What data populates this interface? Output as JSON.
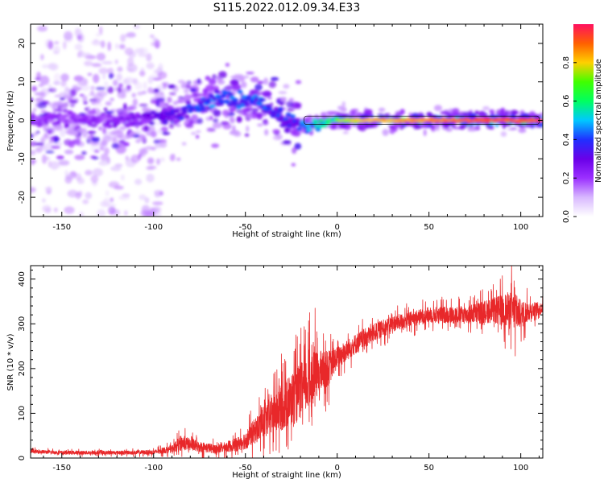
{
  "figure": {
    "title": "S115.2022.012.09.34.E33"
  },
  "chart_data": [
    {
      "type": "heatmap",
      "xlabel": "Height of straight line (km)",
      "ylabel": "Frequency (Hz)",
      "xlim": [
        -167,
        112
      ],
      "ylim": [
        -25,
        25
      ],
      "xticks": [
        -150,
        -100,
        -50,
        0,
        50,
        100
      ],
      "yticks": [
        -20,
        -10,
        0,
        10,
        20
      ],
      "colorbar": {
        "label": "Normalized spectral amplitude",
        "range": [
          0,
          1
        ],
        "ticks": [
          0.0,
          0.2,
          0.4,
          0.6,
          0.8
        ],
        "colormap": [
          "#ffffff",
          "#d8b8ff",
          "#9b30ff",
          "#6a00e8",
          "#2030ff",
          "#00c8ff",
          "#00ff60",
          "#40ff00",
          "#ffd000",
          "#ff6000",
          "#ff1060"
        ]
      },
      "ridge_x": [
        -167,
        -150,
        -120,
        -100,
        -85,
        -70,
        -62,
        -55,
        -45,
        -38,
        -30,
        -22,
        -15,
        -10,
        -5,
        0,
        20,
        50,
        80,
        100,
        112
      ],
      "ridge_y": [
        0,
        0.5,
        0,
        0.5,
        2,
        5,
        6,
        4.5,
        6,
        3,
        1,
        -1,
        -1.5,
        -1,
        0,
        0,
        0,
        0,
        0,
        0,
        0
      ],
      "ridge_amplitude": [
        0.25,
        0.25,
        0.28,
        0.32,
        0.4,
        0.48,
        0.5,
        0.45,
        0.5,
        0.45,
        0.42,
        0.45,
        0.55,
        0.65,
        0.7,
        0.75,
        0.85,
        0.9,
        0.95,
        0.95,
        0.95
      ],
      "noise_extent_x": [
        -160,
        -95
      ],
      "noise_extent_y": [
        -25,
        25
      ]
    },
    {
      "type": "line",
      "xlabel": "Height of straight line (km)",
      "ylabel": "SNR (10 * v/v)",
      "xlim": [
        -167,
        112
      ],
      "ylim": [
        0,
        430
      ],
      "xticks": [
        -150,
        -100,
        -50,
        0,
        50,
        100
      ],
      "yticks": [
        0,
        100,
        200,
        300,
        400
      ],
      "color": "#e8282a",
      "envelope_x": [
        -167,
        -150,
        -120,
        -100,
        -90,
        -85,
        -75,
        -65,
        -55,
        -50,
        -45,
        -35,
        -25,
        -15,
        -10,
        -5,
        0,
        10,
        20,
        30,
        50,
        70,
        85,
        95,
        100,
        105,
        112
      ],
      "envelope_y": [
        15,
        12,
        12,
        13,
        20,
        35,
        25,
        20,
        30,
        40,
        60,
        100,
        130,
        170,
        190,
        200,
        225,
        255,
        280,
        300,
        320,
        320,
        330,
        330,
        320,
        330,
        335
      ],
      "envelope_noise": [
        5,
        5,
        5,
        6,
        10,
        20,
        15,
        12,
        18,
        25,
        35,
        60,
        75,
        80,
        60,
        50,
        30,
        28,
        25,
        22,
        22,
        25,
        35,
        55,
        40,
        25,
        15
      ],
      "peaks": [
        {
          "x": -12,
          "y": 335
        },
        {
          "x": -15,
          "y": 325
        },
        {
          "x": 95,
          "y": 430
        },
        {
          "x": 97,
          "y": 228
        }
      ]
    }
  ]
}
